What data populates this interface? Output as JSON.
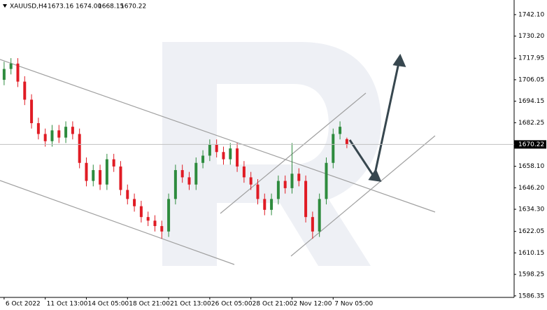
{
  "header": {
    "symbol": "XAUUSD,H4",
    "ohlc": [
      "1673.16",
      "1674.00",
      "1668.15",
      "1670.22"
    ]
  },
  "chart_data": {
    "type": "candlestick",
    "up_color": "#2e8b3e",
    "down_color": "#e01b24",
    "open": [
      1706,
      1712,
      1715,
      1705,
      1695,
      1682,
      1676,
      1672,
      1678,
      1674,
      1680,
      1676,
      1660,
      1650,
      1656,
      1648,
      1662,
      1658,
      1645,
      1640,
      1636,
      1630,
      1628,
      1625,
      1622,
      1640,
      1656,
      1652,
      1648,
      1660,
      1664,
      1670,
      1666,
      1662,
      1668,
      1658,
      1652,
      1648,
      1640,
      1634,
      1640,
      1650,
      1646,
      1654,
      1650,
      1630,
      1622,
      1640,
      1660,
      1676,
      1673.16
    ],
    "high": [
      1716,
      1718,
      1718,
      1708,
      1698,
      1685,
      1679,
      1681,
      1681,
      1683,
      1683,
      1679,
      1663,
      1659,
      1659,
      1665,
      1665,
      1661,
      1648,
      1643,
      1639,
      1633,
      1631,
      1628,
      1643,
      1659,
      1659,
      1655,
      1663,
      1667,
      1673,
      1673,
      1669,
      1671,
      1671,
      1661,
      1655,
      1651,
      1643,
      1643,
      1653,
      1653,
      1671,
      1657,
      1653,
      1633,
      1643,
      1663,
      1679,
      1683,
      1674.0
    ],
    "low": [
      1703,
      1709,
      1702,
      1692,
      1679,
      1673,
      1669,
      1669,
      1671,
      1671,
      1673,
      1657,
      1647,
      1647,
      1645,
      1645,
      1655,
      1642,
      1637,
      1633,
      1627,
      1625,
      1622,
      1618,
      1619,
      1637,
      1649,
      1645,
      1645,
      1657,
      1661,
      1663,
      1659,
      1659,
      1655,
      1649,
      1645,
      1637,
      1631,
      1631,
      1637,
      1643,
      1643,
      1647,
      1627,
      1618,
      1619,
      1637,
      1657,
      1673,
      1668.15
    ],
    "close": [
      1712,
      1715,
      1705,
      1695,
      1682,
      1676,
      1672,
      1678,
      1674,
      1680,
      1676,
      1660,
      1650,
      1656,
      1648,
      1662,
      1658,
      1645,
      1640,
      1636,
      1630,
      1628,
      1625,
      1622,
      1640,
      1656,
      1652,
      1648,
      1660,
      1664,
      1670,
      1666,
      1662,
      1668,
      1658,
      1652,
      1648,
      1640,
      1634,
      1640,
      1650,
      1646,
      1654,
      1650,
      1630,
      1622,
      1640,
      1660,
      1676,
      1680,
      1670.22
    ],
    "current_price": {
      "value": 1670.22,
      "label": "1670.22"
    },
    "ylim": [
      1585.5,
      1750.2
    ],
    "yticks": [
      {
        "value": 1742.1,
        "label": "1742.10"
      },
      {
        "value": 1730.2,
        "label": "1730.20"
      },
      1717.95,
      1706.05,
      1694.15,
      1682.25,
      {
        "value": 1658.1,
        "label": "1658.10"
      },
      {
        "value": 1646.2,
        "label": "1646.20"
      },
      {
        "value": 1634.3,
        "label": "1634.30"
      },
      1622.05,
      1610.15,
      1598.25,
      1586.35
    ],
    "xlim": [
      -0.6,
      74.4
    ],
    "xticks": [
      {
        "value": 0,
        "label": "6 Oct 2022"
      },
      {
        "value": 6,
        "label": "11 Oct 13:00"
      },
      {
        "value": 12,
        "label": "14 Oct 05:00"
      },
      {
        "value": 18,
        "label": "18 Oct 21:00"
      },
      {
        "value": 24,
        "label": "21 Oct 13:00"
      },
      {
        "value": 30,
        "label": "26 Oct 05:00"
      },
      {
        "value": 36,
        "label": "28 Oct 21:00"
      },
      {
        "value": 42,
        "label": "2 Nov 12:00"
      },
      {
        "value": 48,
        "label": "7 Nov 05:00"
      }
    ]
  }
}
